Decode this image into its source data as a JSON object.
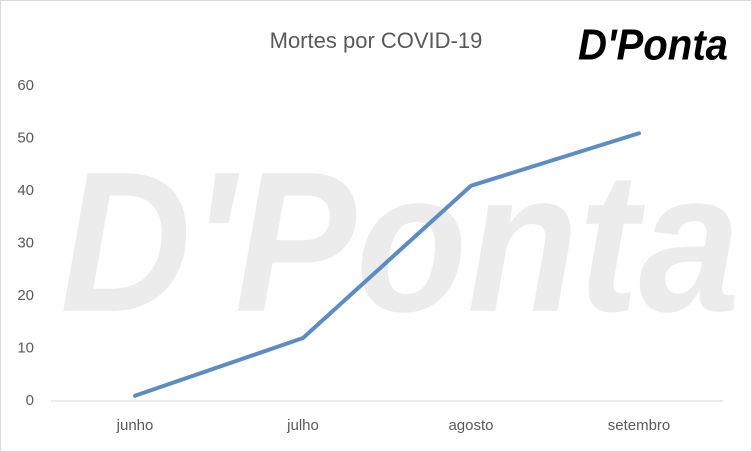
{
  "chart_data": {
    "type": "line",
    "title": "Mortes por COVID-19",
    "logo": "D'Ponta",
    "categories": [
      "junho",
      "julho",
      "agosto",
      "setembro"
    ],
    "series": [
      {
        "name": "Mortes",
        "color": "#5b8cc4",
        "values": [
          1,
          12,
          41,
          51
        ]
      }
    ],
    "ylim": [
      0,
      60
    ],
    "yticks": [
      0,
      10,
      20,
      30,
      40,
      50,
      60
    ],
    "grid": false,
    "legend": false
  }
}
